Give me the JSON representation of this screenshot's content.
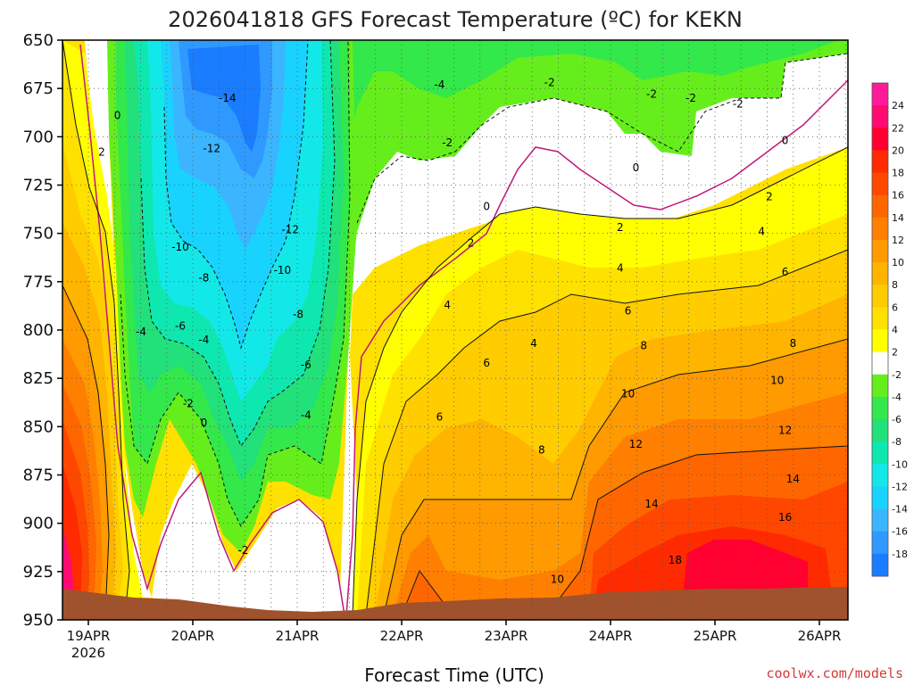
{
  "title": "2026041818 GFS Forecast Temperature (ºC) for KEKN",
  "xlabel": "Forecast Time (UTC)",
  "credit": "coolwx.com/models",
  "year_label": "2026",
  "chart_data": {
    "type": "heatmap",
    "title": "2026041818 GFS Forecast Temperature (ºC) for KEKN",
    "xlabel": "Forecast Time (UTC)",
    "ylabel": "",
    "x_ticks": [
      "19APR",
      "20APR",
      "21APR",
      "22APR",
      "23APR",
      "24APR",
      "25APR",
      "26APR"
    ],
    "y_ticks": [
      650,
      675,
      700,
      725,
      750,
      775,
      800,
      825,
      850,
      875,
      900,
      925,
      950
    ],
    "y_range": [
      950,
      650
    ],
    "colorbar_ticks": [
      24,
      22,
      20,
      18,
      16,
      14,
      12,
      10,
      8,
      6,
      4,
      2,
      -2,
      -4,
      -6,
      -8,
      -10,
      -12,
      -14,
      -16,
      -18
    ],
    "colors": {
      "c_m18": "#1a7cff",
      "c_m16": "#2f99ff",
      "c_m14": "#3bb5ff",
      "c_m12": "#19d3ff",
      "c_m10": "#13e8e8",
      "c_m8": "#0ee8b0",
      "c_m6": "#22e07a",
      "c_m4": "#33e84a",
      "c_m2": "#66ee1c",
      "c_0": "#ffffff",
      "c_2": "#ffff00",
      "c_4": "#ffe100",
      "c_6": "#ffcc00",
      "c_8": "#ffb400",
      "c_10": "#ff9a00",
      "c_12": "#ff7f00",
      "c_14": "#ff6600",
      "c_16": "#ff4700",
      "c_18": "#ff2a00",
      "c_20": "#ff0030",
      "c_22": "#ff0a70",
      "c_24": "#ff1a9a",
      "ground": "#a0522d",
      "zero_line": "#c0187a"
    },
    "contour_labels": [
      {
        "value": "-14",
        "x": 0.21,
        "p": 680
      },
      {
        "value": "-12",
        "x": 0.19,
        "p": 706
      },
      {
        "value": "-10",
        "x": 0.15,
        "p": 757
      },
      {
        "value": "-8",
        "x": 0.18,
        "p": 773
      },
      {
        "value": "-6",
        "x": 0.15,
        "p": 798
      },
      {
        "value": "-4",
        "x": 0.1,
        "p": 801
      },
      {
        "value": "-4",
        "x": 0.18,
        "p": 805
      },
      {
        "value": "-2",
        "x": 0.16,
        "p": 838
      },
      {
        "value": "0",
        "x": 0.18,
        "p": 848
      },
      {
        "value": "-12",
        "x": 0.29,
        "p": 748
      },
      {
        "value": "-10",
        "x": 0.28,
        "p": 769
      },
      {
        "value": "-8",
        "x": 0.3,
        "p": 792
      },
      {
        "value": "-6",
        "x": 0.31,
        "p": 818
      },
      {
        "value": "-4",
        "x": 0.31,
        "p": 844
      },
      {
        "value": "-2",
        "x": 0.23,
        "p": 914
      },
      {
        "value": "0",
        "x": 0.07,
        "p": 689
      },
      {
        "value": "2",
        "x": 0.05,
        "p": 708
      },
      {
        "value": "-4",
        "x": 0.48,
        "p": 673
      },
      {
        "value": "-2",
        "x": 0.49,
        "p": 703
      },
      {
        "value": "-2",
        "x": 0.62,
        "p": 672
      },
      {
        "value": "-2",
        "x": 0.75,
        "p": 678
      },
      {
        "value": "-2",
        "x": 0.8,
        "p": 680
      },
      {
        "value": "-2",
        "x": 0.86,
        "p": 683
      },
      {
        "value": "0",
        "x": 0.54,
        "p": 736
      },
      {
        "value": "0",
        "x": 0.73,
        "p": 716
      },
      {
        "value": "0",
        "x": 0.92,
        "p": 702
      },
      {
        "value": "2",
        "x": 0.52,
        "p": 755
      },
      {
        "value": "2",
        "x": 0.71,
        "p": 747
      },
      {
        "value": "2",
        "x": 0.9,
        "p": 731
      },
      {
        "value": "4",
        "x": 0.49,
        "p": 787
      },
      {
        "value": "4",
        "x": 0.6,
        "p": 807
      },
      {
        "value": "4",
        "x": 0.71,
        "p": 768
      },
      {
        "value": "4",
        "x": 0.89,
        "p": 749
      },
      {
        "value": "6",
        "x": 0.54,
        "p": 817
      },
      {
        "value": "6",
        "x": 0.48,
        "p": 845
      },
      {
        "value": "6",
        "x": 0.72,
        "p": 790
      },
      {
        "value": "6",
        "x": 0.92,
        "p": 770
      },
      {
        "value": "8",
        "x": 0.61,
        "p": 862
      },
      {
        "value": "8",
        "x": 0.74,
        "p": 808
      },
      {
        "value": "8",
        "x": 0.93,
        "p": 807
      },
      {
        "value": "10",
        "x": 0.72,
        "p": 833
      },
      {
        "value": "10",
        "x": 0.91,
        "p": 826
      },
      {
        "value": "10",
        "x": 0.63,
        "p": 929
      },
      {
        "value": "12",
        "x": 0.73,
        "p": 859
      },
      {
        "value": "12",
        "x": 0.92,
        "p": 852
      },
      {
        "value": "14",
        "x": 0.75,
        "p": 890
      },
      {
        "value": "14",
        "x": 0.93,
        "p": 877
      },
      {
        "value": "16",
        "x": 0.92,
        "p": 897
      },
      {
        "value": "18",
        "x": 0.78,
        "p": 919
      }
    ]
  }
}
